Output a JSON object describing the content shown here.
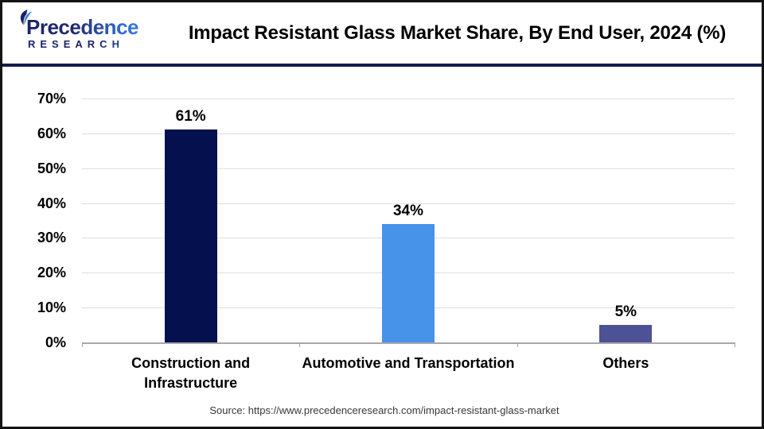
{
  "header": {
    "logo": {
      "line1": "Precedence",
      "line2": "RESEARCH"
    },
    "title": "Impact Resistant Glass Market Share, By End User, 2024 (%)"
  },
  "chart_data": {
    "type": "bar",
    "title": "Impact Resistant Glass Market Share, By End User, 2024 (%)",
    "categories": [
      "Construction and\nInfrastructure",
      "Automotive and Transportation",
      "Others"
    ],
    "values": [
      61,
      34,
      5
    ],
    "value_labels": [
      "61%",
      "34%",
      "5%"
    ],
    "bar_colors": [
      "#05104e",
      "#4793e9",
      "#4d5195"
    ],
    "xlabel": "",
    "ylabel": "",
    "ylim": [
      0,
      70
    ],
    "ytick_values": [
      0,
      10,
      20,
      30,
      40,
      50,
      60,
      70
    ],
    "ytick_labels": [
      "0%",
      "10%",
      "20%",
      "30%",
      "40%",
      "50%",
      "60%",
      "70%"
    ],
    "grid": true,
    "legend": "none"
  },
  "footer": {
    "source": "Source: https://www.precedenceresearch.com/impact-resistant-glass-market"
  },
  "colors": {
    "brand_navy": "#1b2264",
    "brand_blue": "#3f7de0",
    "header_divider": "#131c4e",
    "gridline": "#dfdfdf",
    "axis_line": "#a8a8a8",
    "page_border": "#141414"
  }
}
